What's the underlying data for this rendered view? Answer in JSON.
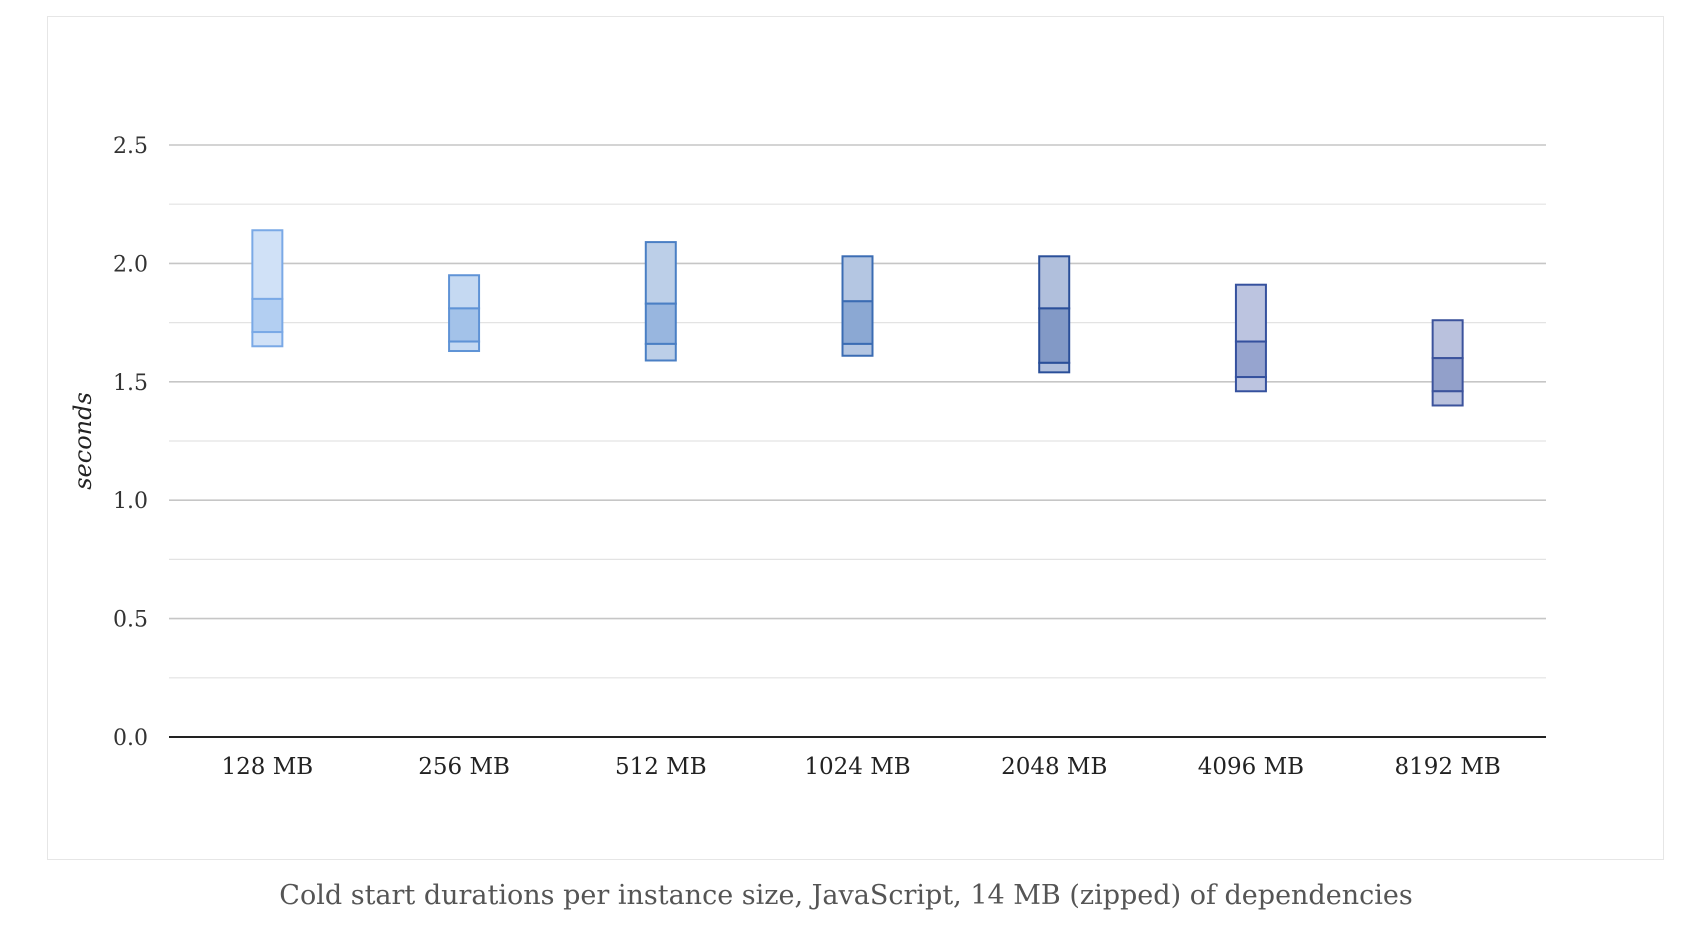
{
  "figure": {
    "caption": "Cold start durations per instance size, JavaScript, 14 MB (zipped) of dependencies"
  },
  "chart_data": {
    "type": "box",
    "title": "",
    "xlabel": "",
    "ylabel": "seconds",
    "ylim": [
      0,
      2.5
    ],
    "yticks": [
      "0.0",
      "0.5",
      "1.0",
      "1.5",
      "2.0",
      "2.5"
    ],
    "minor_gridlines": true,
    "legend": "none",
    "categories": [
      "128 MB",
      "256 MB",
      "512 MB",
      "1024 MB",
      "2048 MB",
      "4096 MB",
      "8192 MB"
    ],
    "boxes": [
      {
        "category": "128 MB",
        "min": 1.65,
        "q1": 1.71,
        "median": 1.85,
        "max": 2.14,
        "stroke": "#7aa9e6",
        "fill_outer": "#d0e1f7",
        "fill_inner": "#b3cff2"
      },
      {
        "category": "256 MB",
        "min": 1.63,
        "q1": 1.67,
        "median": 1.81,
        "max": 1.95,
        "stroke": "#5f93d6",
        "fill_outer": "#c5d9f2",
        "fill_inner": "#a3c2e9"
      },
      {
        "category": "512 MB",
        "min": 1.59,
        "q1": 1.66,
        "median": 1.83,
        "max": 2.09,
        "stroke": "#4a7fc4",
        "fill_outer": "#bccfe8",
        "fill_inner": "#98b6df"
      },
      {
        "category": "1024 MB",
        "min": 1.61,
        "q1": 1.66,
        "median": 1.84,
        "max": 2.03,
        "stroke": "#3b6cb3",
        "fill_outer": "#b4c6e2",
        "fill_inner": "#8ba8d3"
      },
      {
        "category": "2048 MB",
        "min": 1.54,
        "q1": 1.58,
        "median": 1.81,
        "max": 2.03,
        "stroke": "#2a4f99",
        "fill_outer": "#b0bfdc",
        "fill_inner": "#8299c6"
      },
      {
        "category": "4096 MB",
        "min": 1.46,
        "q1": 1.52,
        "median": 1.67,
        "max": 1.91,
        "stroke": "#35519e",
        "fill_outer": "#bcc4e0",
        "fill_inner": "#96a4cf"
      },
      {
        "category": "8192 MB",
        "min": 1.4,
        "q1": 1.46,
        "median": 1.6,
        "max": 1.76,
        "stroke": "#3c539c",
        "fill_outer": "#b9c1dd",
        "fill_inner": "#92a0ca"
      }
    ]
  }
}
